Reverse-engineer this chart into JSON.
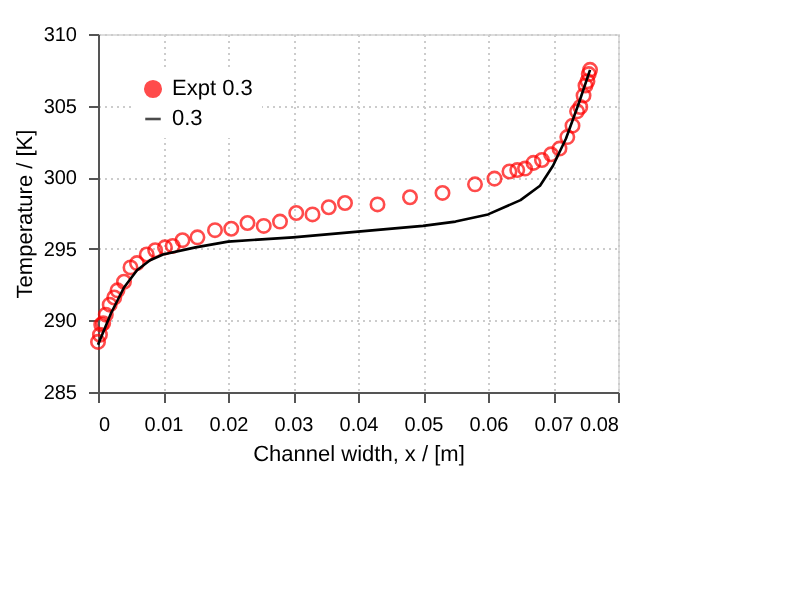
{
  "chart_data": {
    "type": "scatter",
    "xlabel": "Channel width, x / [m]",
    "ylabel": "Temperature / [K]",
    "xlim": [
      0,
      0.08
    ],
    "xticks": [
      0,
      0.01,
      0.02,
      0.03,
      0.04,
      0.05,
      0.06,
      0.07,
      0.08
    ],
    "ylim": [
      285,
      310
    ],
    "yticks": [
      285,
      290,
      295,
      300,
      305,
      310
    ],
    "grid": true,
    "legend": "top left",
    "series": [
      {
        "name": "Expt 0.3",
        "marker": "circle",
        "color": "#ff0000",
        "x": [
          0.0,
          0.0003,
          0.0005,
          0.0008,
          0.0012,
          0.0018,
          0.0025,
          0.003,
          0.004,
          0.005,
          0.006,
          0.0075,
          0.0088,
          0.0103,
          0.0115,
          0.013,
          0.0153,
          0.018,
          0.0205,
          0.023,
          0.0255,
          0.028,
          0.0305,
          0.033,
          0.0355,
          0.038,
          0.043,
          0.048,
          0.053,
          0.058,
          0.061,
          0.0633,
          0.0645,
          0.0657,
          0.067,
          0.0683,
          0.0697,
          0.071,
          0.0722,
          0.073,
          0.0737,
          0.0742,
          0.0747,
          0.075,
          0.0753,
          0.0755,
          0.0757
        ],
        "values": [
          288.5,
          289.0,
          289.7,
          289.8,
          290.4,
          291.1,
          291.6,
          292.1,
          292.7,
          293.7,
          294.0,
          294.6,
          294.9,
          295.1,
          295.2,
          295.6,
          295.8,
          296.3,
          296.4,
          296.8,
          296.6,
          296.9,
          297.5,
          297.4,
          297.9,
          298.2,
          298.1,
          298.6,
          298.9,
          299.5,
          299.9,
          300.4,
          300.5,
          300.6,
          301.0,
          301.2,
          301.6,
          302.0,
          302.8,
          303.6,
          304.6,
          304.9,
          305.7,
          306.4,
          306.7,
          307.2,
          307.5
        ]
      },
      {
        "name": "0.3",
        "type": "line",
        "line_style": "solid",
        "color": "#000000",
        "x": [
          0.0,
          0.002,
          0.004,
          0.006,
          0.008,
          0.01,
          0.015,
          0.02,
          0.03,
          0.04,
          0.05,
          0.055,
          0.06,
          0.065,
          0.068,
          0.07,
          0.072,
          0.074,
          0.0757
        ],
        "values": [
          288.3,
          290.5,
          292.3,
          293.5,
          294.2,
          294.6,
          295.1,
          295.5,
          295.8,
          296.2,
          296.6,
          296.9,
          297.4,
          298.4,
          299.4,
          300.8,
          302.7,
          305.2,
          307.5
        ]
      }
    ]
  }
}
